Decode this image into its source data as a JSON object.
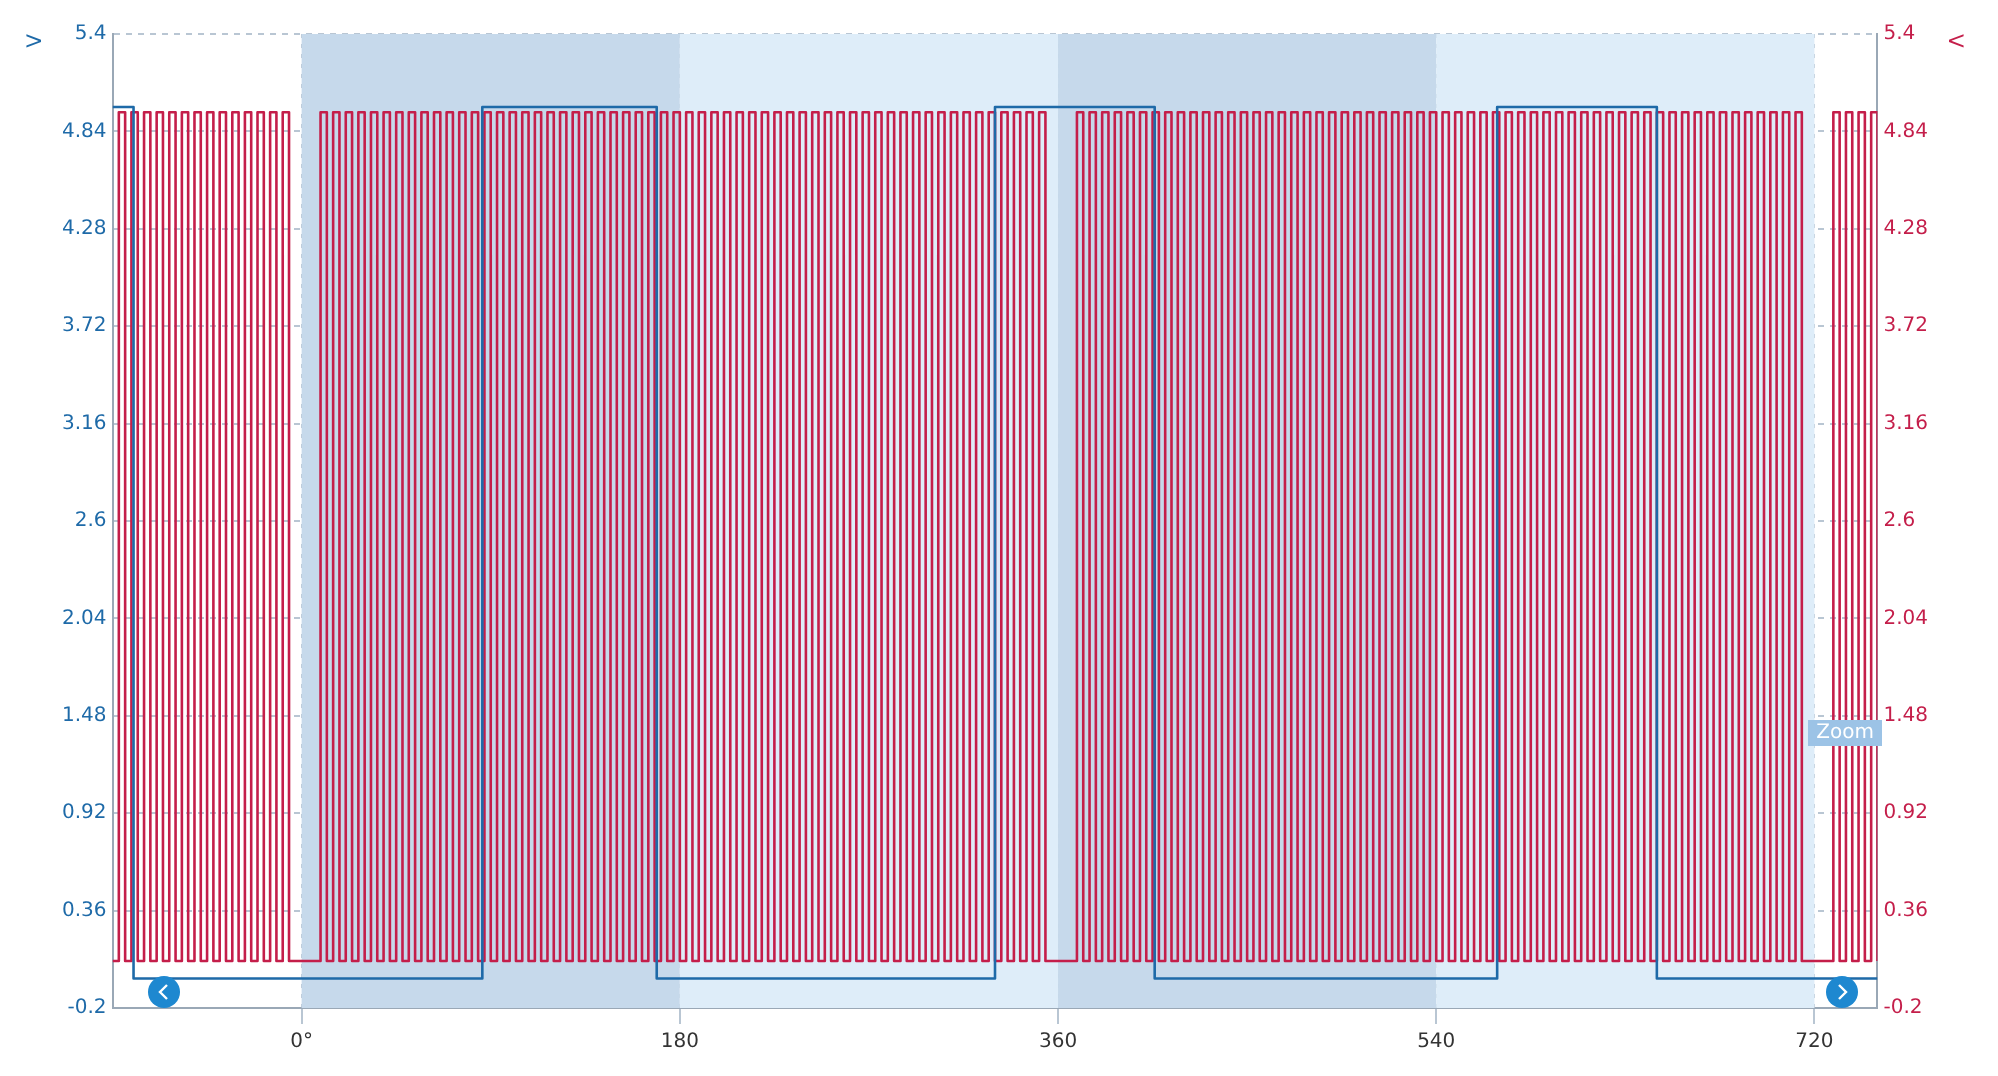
{
  "chart_data": {
    "type": "step",
    "ylabel": "V",
    "y2label": "V",
    "xlim": [
      -90,
      750
    ],
    "xticks": [
      {
        "value": 0,
        "label": "0°"
      },
      180,
      360,
      540,
      720
    ],
    "ylim": [
      -0.2,
      5.4
    ],
    "yticks": [
      -0.2,
      0.36,
      0.92,
      1.48,
      2.04,
      2.6,
      3.16,
      3.72,
      4.28,
      4.84,
      5.4
    ],
    "y2lim": [
      -0.2,
      5.4
    ],
    "y2ticks": [
      -0.2,
      0.36,
      0.92,
      1.48,
      2.04,
      2.6,
      3.16,
      3.72,
      4.28,
      4.84,
      5.4
    ],
    "grid": true,
    "legend": false,
    "bands": [
      {
        "axis": "x",
        "from": 0,
        "to": 180,
        "color": "#c6d9eb"
      },
      {
        "axis": "x",
        "from": 180,
        "to": 360,
        "color": "#deedf9"
      },
      {
        "axis": "x",
        "from": 360,
        "to": 540,
        "color": "#c6d9eb"
      },
      {
        "axis": "x",
        "from": 540,
        "to": 720,
        "color": "#deedf9"
      }
    ],
    "annotations": [
      "Zoom"
    ],
    "series": [
      {
        "color": "#1e6aa8",
        "x": [
          -90,
          -80,
          86,
          169,
          330,
          406,
          569,
          645,
          750
        ],
        "values": [
          4.98,
          -0.03,
          4.98,
          -0.03,
          4.98,
          -0.03,
          4.98,
          -0.03,
          -0.03
        ]
      },
      {
        "color": "#c41e4a",
        "axis": "y2",
        "x": [
          -90,
          -87,
          -84,
          -81,
          -78,
          -75,
          -72,
          -69,
          -66,
          -63,
          -60,
          -57,
          -54,
          -51,
          -48,
          -45,
          -42,
          -39,
          -36,
          -33,
          -30,
          -27,
          -24,
          -21,
          -18,
          -15,
          -12,
          -9,
          -6,
          9,
          12,
          15,
          18,
          21,
          24,
          27,
          30,
          33,
          36,
          39,
          42,
          45,
          48,
          51,
          54,
          57,
          60,
          63,
          66,
          69,
          72,
          75,
          78,
          81,
          84,
          87,
          90,
          93,
          96,
          99,
          102,
          105,
          108,
          111,
          114,
          117,
          120,
          123,
          126,
          129,
          132,
          135,
          138,
          141,
          144,
          147,
          150,
          153,
          156,
          159,
          162,
          165,
          168,
          171,
          174,
          177,
          180,
          183,
          186,
          189,
          192,
          195,
          198,
          201,
          204,
          207,
          210,
          213,
          216,
          219,
          222,
          225,
          228,
          231,
          234,
          237,
          240,
          243,
          246,
          249,
          252,
          255,
          258,
          261,
          264,
          267,
          270,
          273,
          276,
          279,
          282,
          285,
          288,
          291,
          294,
          297,
          300,
          303,
          306,
          309,
          312,
          315,
          318,
          321,
          324,
          327,
          330,
          333,
          336,
          339,
          342,
          345,
          348,
          351,
          354,
          369,
          372,
          375,
          378,
          381,
          384,
          387,
          390,
          393,
          396,
          399,
          402,
          405,
          408,
          411,
          414,
          417,
          420,
          423,
          426,
          429,
          432,
          435,
          438,
          441,
          444,
          447,
          450,
          453,
          456,
          459,
          462,
          465,
          468,
          471,
          474,
          477,
          480,
          483,
          486,
          489,
          492,
          495,
          498,
          501,
          504,
          507,
          510,
          513,
          516,
          519,
          522,
          525,
          528,
          531,
          534,
          537,
          540,
          543,
          546,
          549,
          552,
          555,
          558,
          561,
          564,
          567,
          570,
          573,
          576,
          579,
          582,
          585,
          588,
          591,
          594,
          597,
          600,
          603,
          606,
          609,
          612,
          615,
          618,
          621,
          624,
          627,
          630,
          633,
          636,
          639,
          642,
          645,
          648,
          651,
          654,
          657,
          660,
          663,
          666,
          669,
          672,
          675,
          678,
          681,
          684,
          687,
          690,
          693,
          696,
          699,
          702,
          705,
          708,
          711,
          714,
          729,
          732,
          735,
          738,
          741,
          744,
          747,
          750
        ],
        "values": [
          0.07,
          4.95,
          0.07,
          4.95,
          0.07,
          4.95,
          0.07,
          4.95,
          0.07,
          4.95,
          0.07,
          4.95,
          0.07,
          4.95,
          0.07,
          4.95,
          0.07,
          4.95,
          0.07,
          4.95,
          0.07,
          4.95,
          0.07,
          4.95,
          0.07,
          4.95,
          0.07,
          4.95,
          0.07,
          4.95,
          0.07,
          4.95,
          0.07,
          4.95,
          0.07,
          4.95,
          0.07,
          4.95,
          0.07,
          4.95,
          0.07,
          4.95,
          0.07,
          4.95,
          0.07,
          4.95,
          0.07,
          4.95,
          0.07,
          4.95,
          0.07,
          4.95,
          0.07,
          4.95,
          0.07,
          4.95,
          0.07,
          4.95,
          0.07,
          4.95,
          0.07,
          4.95,
          0.07,
          4.95,
          0.07,
          4.95,
          0.07,
          4.95,
          0.07,
          4.95,
          0.07,
          4.95,
          0.07,
          4.95,
          0.07,
          4.95,
          0.07,
          4.95,
          0.07,
          4.95,
          0.07,
          4.95,
          0.07,
          4.95,
          0.07,
          4.95,
          0.07,
          4.95,
          0.07,
          4.95,
          0.07,
          4.95,
          0.07,
          4.95,
          0.07,
          4.95,
          0.07,
          4.95,
          0.07,
          4.95,
          0.07,
          4.95,
          0.07,
          4.95,
          0.07,
          4.95,
          0.07,
          4.95,
          0.07,
          4.95,
          0.07,
          4.95,
          0.07,
          4.95,
          0.07,
          4.95,
          0.07,
          4.95,
          0.07,
          4.95,
          0.07,
          4.95,
          0.07,
          4.95,
          0.07,
          4.95,
          0.07,
          4.95,
          0.07,
          4.95,
          0.07,
          4.95,
          0.07,
          4.95,
          0.07,
          4.95,
          0.07,
          4.95,
          0.07,
          4.95,
          0.07,
          4.95,
          0.07,
          4.95,
          0.07,
          4.95,
          0.07,
          4.95,
          0.07,
          4.95,
          0.07,
          4.95,
          0.07,
          4.95,
          0.07,
          4.95,
          0.07,
          4.95,
          0.07,
          4.95,
          0.07,
          4.95,
          0.07,
          4.95,
          0.07,
          4.95,
          0.07,
          4.95,
          0.07,
          4.95,
          0.07,
          4.95,
          0.07,
          4.95,
          0.07,
          4.95,
          0.07,
          4.95,
          0.07,
          4.95,
          0.07,
          4.95,
          0.07,
          4.95,
          0.07,
          4.95,
          0.07,
          4.95,
          0.07,
          4.95,
          0.07,
          4.95,
          0.07,
          4.95,
          0.07,
          4.95,
          0.07,
          4.95,
          0.07,
          4.95,
          0.07,
          4.95,
          0.07,
          4.95,
          0.07,
          4.95,
          0.07,
          4.95,
          0.07,
          4.95,
          0.07,
          4.95,
          0.07,
          4.95,
          0.07,
          4.95,
          0.07,
          4.95,
          0.07,
          4.95,
          0.07,
          4.95,
          0.07,
          4.95,
          0.07,
          4.95,
          0.07,
          4.95,
          0.07,
          4.95,
          0.07,
          4.95,
          0.07,
          4.95,
          0.07,
          4.95,
          0.07,
          4.95,
          0.07,
          4.95,
          0.07,
          4.95,
          0.07,
          4.95,
          0.07,
          4.95,
          0.07,
          4.95,
          0.07,
          4.95,
          0.07,
          4.95,
          0.07,
          4.95,
          0.07,
          4.95,
          0.07,
          4.95,
          0.07,
          4.95,
          0.07,
          4.95,
          0.07,
          4.95,
          0.07,
          4.95,
          0.07,
          4.95,
          0.07
        ]
      }
    ]
  }
}
